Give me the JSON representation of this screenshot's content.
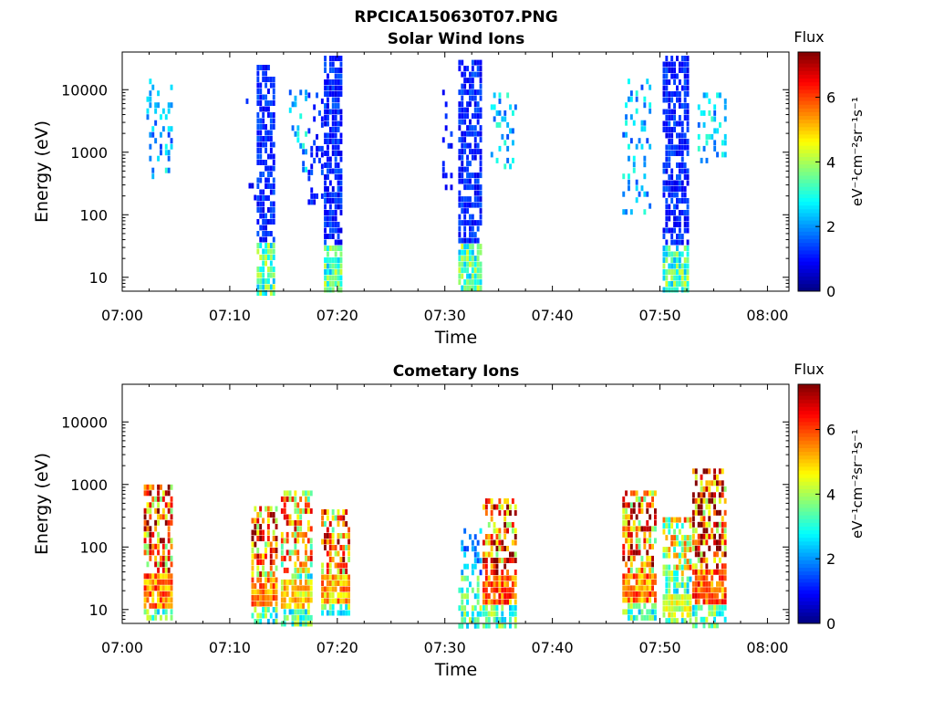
{
  "figure": {
    "title": "RPCICA150630T07.PNG"
  },
  "chart_data": [
    {
      "type": "heatmap",
      "title": "Solar Wind Ions",
      "xlabel": "Time",
      "ylabel": "Energy (eV)",
      "yscale": "log",
      "ylim": [
        6,
        40000
      ],
      "xlim": [
        "07:00",
        "08:02"
      ],
      "x_ticks": [
        "07:00",
        "07:10",
        "07:20",
        "07:30",
        "07:40",
        "07:50",
        "08:00"
      ],
      "y_ticks": [
        {
          "value": 10,
          "label": "10"
        },
        {
          "value": 100,
          "label": "100"
        },
        {
          "value": 1000,
          "label": "1000"
        },
        {
          "value": 10000,
          "label": "10000"
        }
      ],
      "colorbar": {
        "label": "Flux",
        "units": "eV⁻¹cm⁻²sr⁻¹s⁻¹",
        "range": [
          0,
          7.4
        ],
        "ticks": [
          0,
          2,
          4,
          6
        ],
        "colormap": "jet"
      },
      "grid": false,
      "seed": 11,
      "bursts": [
        {
          "t0": "07:02:15",
          "t1": "07:04:30",
          "emin": 400,
          "emax": 15000,
          "peak": 2.5,
          "density": 0.22,
          "lowE": false
        },
        {
          "t0": "07:11:00",
          "t1": "07:11:30",
          "emin": 6000,
          "emax": 9000,
          "peak": 1.4,
          "density": 0.3,
          "lowE": false
        },
        {
          "t0": "07:11:45",
          "t1": "07:12:15",
          "emin": 200,
          "emax": 400,
          "peak": 1.2,
          "density": 0.4,
          "lowE": false
        },
        {
          "t0": "07:12:30",
          "t1": "07:14:00",
          "emin": 6,
          "emax": 25000,
          "peak": 1.3,
          "density": 0.7,
          "lowE": true
        },
        {
          "t0": "07:15:30",
          "t1": "07:17:00",
          "emin": 500,
          "emax": 10000,
          "peak": 2.6,
          "density": 0.3,
          "lowE": false
        },
        {
          "t0": "07:17:15",
          "t1": "07:18:30",
          "emin": 150,
          "emax": 9000,
          "peak": 1.3,
          "density": 0.3,
          "lowE": false
        },
        {
          "t0": "07:18:45",
          "t1": "07:20:15",
          "emin": 6,
          "emax": 35000,
          "peak": 1.3,
          "density": 0.72,
          "lowE": true
        },
        {
          "t0": "07:29:45",
          "t1": "07:30:30",
          "emin": 200,
          "emax": 10000,
          "peak": 1.2,
          "density": 0.25,
          "lowE": false
        },
        {
          "t0": "07:31:15",
          "t1": "07:33:15",
          "emin": 6,
          "emax": 30000,
          "peak": 1.3,
          "density": 0.7,
          "lowE": true
        },
        {
          "t0": "07:34:15",
          "t1": "07:36:30",
          "emin": 600,
          "emax": 9000,
          "peak": 2.6,
          "density": 0.22,
          "lowE": false
        },
        {
          "t0": "07:46:30",
          "t1": "07:49:00",
          "emin": 100,
          "emax": 15000,
          "peak": 2.5,
          "density": 0.25,
          "lowE": false
        },
        {
          "t0": "07:50:15",
          "t1": "07:52:30",
          "emin": 6,
          "emax": 35000,
          "peak": 1.3,
          "density": 0.72,
          "lowE": true
        },
        {
          "t0": "07:53:30",
          "t1": "07:56:00",
          "emin": 700,
          "emax": 9000,
          "peak": 2.6,
          "density": 0.25,
          "lowE": false
        }
      ]
    },
    {
      "type": "heatmap",
      "title": "Cometary Ions",
      "xlabel": "Time",
      "ylabel": "Energy (eV)",
      "yscale": "log",
      "ylim": [
        6,
        40000
      ],
      "xlim": [
        "07:00",
        "08:02"
      ],
      "x_ticks": [
        "07:00",
        "07:10",
        "07:20",
        "07:30",
        "07:40",
        "07:50",
        "08:00"
      ],
      "y_ticks": [
        {
          "value": 10,
          "label": "10"
        },
        {
          "value": 100,
          "label": "100"
        },
        {
          "value": 1000,
          "label": "1000"
        },
        {
          "value": 10000,
          "label": "10000"
        }
      ],
      "colorbar": {
        "label": "Flux",
        "units": "eV⁻¹cm⁻²sr⁻¹s⁻¹",
        "range": [
          0,
          7.4
        ],
        "ticks": [
          0,
          2,
          4,
          6
        ],
        "colormap": "jet"
      },
      "grid": false,
      "seed": 23,
      "bursts": [
        {
          "t0": "07:02:00",
          "t1": "07:04:30",
          "emin": 8,
          "emax": 1000,
          "peak": 6.5,
          "density": 0.6,
          "lowE": true,
          "hotE": [
            12,
            40
          ]
        },
        {
          "t0": "07:12:00",
          "t1": "07:14:15",
          "emin": 6,
          "emax": 450,
          "peak": 6.2,
          "density": 0.6,
          "lowE": true,
          "hotE": [
            12,
            40
          ]
        },
        {
          "t0": "07:14:45",
          "t1": "07:17:30",
          "emin": 6,
          "emax": 800,
          "peak": 5.6,
          "density": 0.6,
          "lowE": true,
          "hotE": [
            12,
            35
          ]
        },
        {
          "t0": "07:18:30",
          "t1": "07:21:00",
          "emin": 8,
          "emax": 400,
          "peak": 6.0,
          "density": 0.6,
          "lowE": true,
          "hotE": [
            15,
            40
          ]
        },
        {
          "t0": "07:31:15",
          "t1": "07:33:15",
          "emin": 6,
          "emax": 200,
          "peak": 2.2,
          "density": 0.4,
          "lowE": true
        },
        {
          "t0": "07:33:30",
          "t1": "07:36:30",
          "emin": 6,
          "emax": 600,
          "peak": 6.5,
          "density": 0.55,
          "lowE": true,
          "hotE": [
            12,
            40
          ]
        },
        {
          "t0": "07:46:30",
          "t1": "07:49:30",
          "emin": 8,
          "emax": 800,
          "peak": 6.3,
          "density": 0.6,
          "lowE": true,
          "hotE": [
            15,
            45
          ]
        },
        {
          "t0": "07:50:15",
          "t1": "07:52:45",
          "emin": 6,
          "emax": 300,
          "peak": 5.0,
          "density": 0.6,
          "lowE": true,
          "hotE": [
            8,
            20
          ]
        },
        {
          "t0": "07:53:00",
          "t1": "07:56:00",
          "emin": 6,
          "emax": 1800,
          "peak": 6.6,
          "density": 0.6,
          "lowE": true,
          "hotE": [
            12,
            45
          ]
        }
      ]
    }
  ]
}
